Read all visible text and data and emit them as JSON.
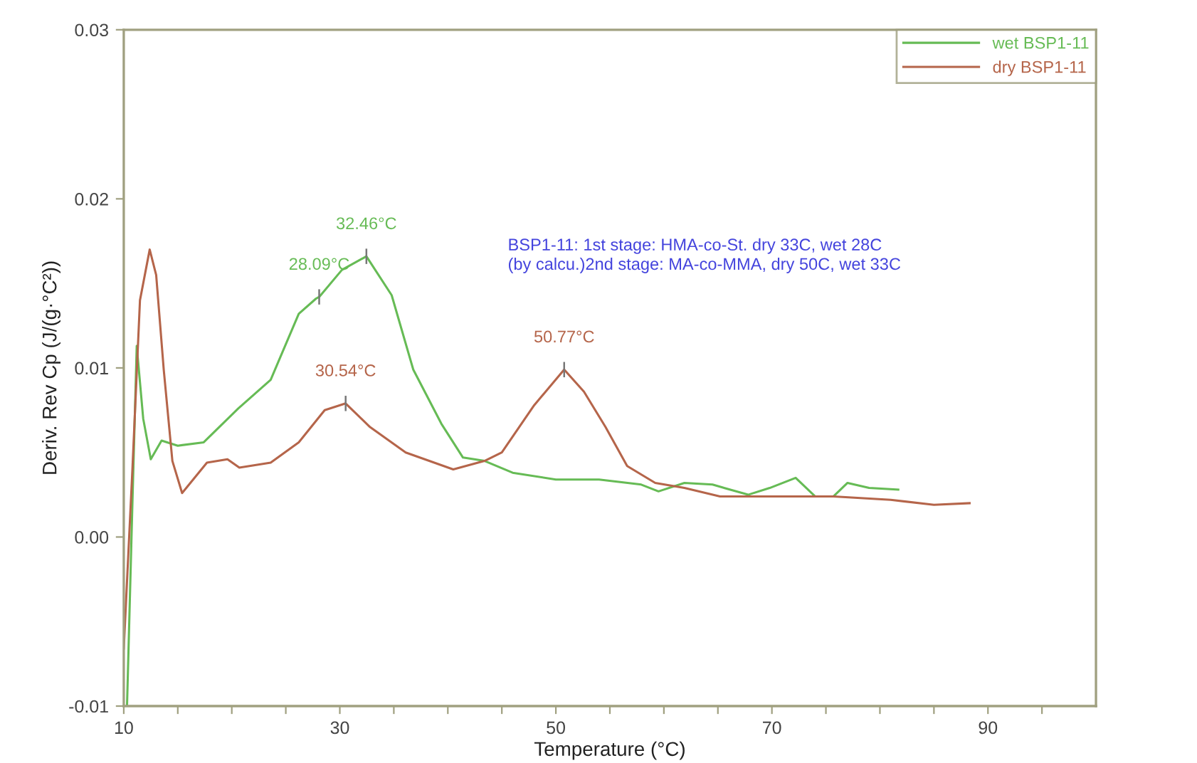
{
  "chart_data": {
    "type": "line",
    "xlabel": "Temperature (°C)",
    "ylabel": "Deriv. Rev Cp (J/(g·°C²))",
    "xlim": [
      10,
      100
    ],
    "xticks": [
      10,
      {
        "value": 15,
        "label": null
      },
      {
        "value": 20,
        "label": null
      },
      {
        "value": 25,
        "label": null
      },
      30,
      {
        "value": 35,
        "label": null
      },
      {
        "value": 40,
        "label": null
      },
      {
        "value": 45,
        "label": null
      },
      50,
      {
        "value": 55,
        "label": null
      },
      {
        "value": 60,
        "label": null
      },
      {
        "value": 65,
        "label": null
      },
      70,
      {
        "value": 75,
        "label": null
      },
      {
        "value": 80,
        "label": null
      },
      {
        "value": 85,
        "label": null
      },
      90,
      {
        "value": 95,
        "label": null
      }
    ],
    "ylim": [
      -0.01,
      0.03
    ],
    "yticks": [
      {
        "value": -0.01,
        "label": "-0.01"
      },
      {
        "value": 0.0,
        "label": "0.00"
      },
      {
        "value": 0.01,
        "label": "0.01"
      },
      {
        "value": 0.02,
        "label": "0.02"
      },
      {
        "value": 0.03,
        "label": "0.03"
      }
    ],
    "legend": "top right",
    "grid": false,
    "line_style": "solid",
    "series": [
      {
        "name": "wet BSP1-11",
        "color": "#66bb55",
        "x": [
          10.3,
          10.8,
          11.2,
          11.8,
          12.5,
          13.5,
          15.0,
          17.4,
          20.6,
          23.6,
          26.2,
          27.8,
          28.09,
          30.2,
          32.46,
          34.8,
          36.8,
          39.4,
          41.4,
          43.4,
          46.0,
          50.0,
          54.0,
          57.9,
          59.5,
          61.9,
          64.5,
          67.8,
          69.8,
          72.2,
          74.0,
          75.7,
          77.0,
          79.0,
          81.7
        ],
        "values": [
          -0.01,
          0.002,
          0.0113,
          0.007,
          0.0046,
          0.0057,
          0.0054,
          0.0056,
          0.0076,
          0.0093,
          0.0132,
          0.0141,
          0.0142,
          0.0158,
          0.0166,
          0.0143,
          0.0099,
          0.0067,
          0.0047,
          0.0045,
          0.0038,
          0.0034,
          0.0034,
          0.0031,
          0.0027,
          0.0032,
          0.0031,
          0.0025,
          0.0029,
          0.0035,
          0.0024,
          0.0024,
          0.0032,
          0.0029,
          0.0028
        ]
      },
      {
        "name": "dry BSP1-11",
        "color": "#b5654a",
        "x": [
          10.0,
          10.8,
          11.5,
          12.4,
          13.0,
          13.7,
          14.5,
          15.4,
          17.7,
          19.6,
          20.7,
          23.6,
          26.2,
          28.6,
          30.54,
          32.8,
          36.1,
          40.5,
          43.4,
          45.0,
          48.0,
          50.77,
          52.6,
          54.6,
          56.6,
          59.2,
          61.9,
          65.2,
          69.8,
          75.7,
          81.0,
          85.0,
          88.3
        ],
        "values": [
          -0.0066,
          0.004,
          0.014,
          0.017,
          0.0155,
          0.0099,
          0.0045,
          0.0026,
          0.0044,
          0.0046,
          0.0041,
          0.0044,
          0.0056,
          0.0075,
          0.0079,
          0.0065,
          0.005,
          0.004,
          0.0045,
          0.005,
          0.0078,
          0.0099,
          0.0086,
          0.0065,
          0.0042,
          0.0032,
          0.0029,
          0.0024,
          0.0024,
          0.0024,
          0.0022,
          0.0019,
          0.002
        ]
      }
    ],
    "annotations": [
      {
        "text": "28.09°C",
        "x": 28.09,
        "y": 0.0142
      },
      {
        "text": "32.46°C",
        "x": 32.46,
        "y": 0.0166
      },
      {
        "text": "30.54°C",
        "x": 30.54,
        "y": 0.0079
      },
      {
        "text": "50.77°C",
        "x": 50.77,
        "y": 0.0099
      },
      "BSP1-11: 1st stage: HMA-co-St. dry 33C, wet 28C\n(by calcu.)2nd stage: MA-co-MMA, dry 50C, wet 33C"
    ]
  }
}
